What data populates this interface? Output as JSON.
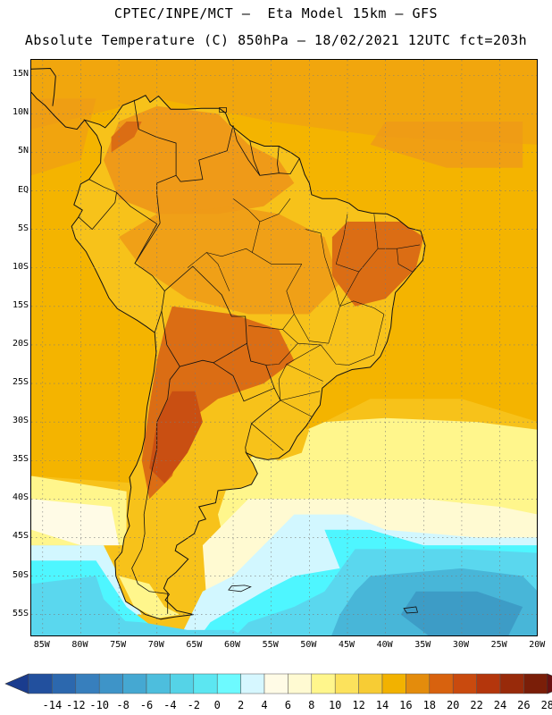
{
  "header": {
    "line1": "CPTEC/INPE/MCT –  Eta Model 15km – GFS",
    "line2": "Absolute Temperature (C) 850hPa – 18/02/2021 12UTC fct=203h"
  },
  "map": {
    "lat_labels": [
      "15N",
      "10N",
      "5N",
      "EQ",
      "5S",
      "10S",
      "15S",
      "20S",
      "25S",
      "30S",
      "35S",
      "40S",
      "45S",
      "50S",
      "55S"
    ],
    "lon_labels": [
      "85W",
      "80W",
      "75W",
      "70W",
      "65W",
      "60W",
      "55W",
      "50W",
      "45W",
      "40W",
      "35W",
      "30W",
      "25W",
      "20W"
    ],
    "colors": {
      "ocean_base": "#f4b400",
      "light_orange": "#f7c21a",
      "orange": "#ef9a18",
      "dark_orange": "#db6d14",
      "red_orange": "#c94f12",
      "yellow": "#fff68c",
      "pale_yellow": "#fffad2",
      "cream": "#fffbe6",
      "pale_cyan": "#d2f7ff",
      "cyan": "#4ef6ff",
      "light_blue": "#5ad7ee",
      "mid_blue": "#48b6d8",
      "deep_blue": "#3d9cc6",
      "coast": "#111111"
    }
  },
  "colorbar": {
    "ticks": [
      "-14",
      "-12",
      "-10",
      "-8",
      "-6",
      "-4",
      "-2",
      "0",
      "2",
      "4",
      "6",
      "8",
      "10",
      "12",
      "14",
      "16",
      "18",
      "20",
      "22",
      "24",
      "26",
      "28"
    ],
    "colors": [
      "#1a3c8e",
      "#22509e",
      "#2c68ae",
      "#377fbd",
      "#3e94c8",
      "#45a8d2",
      "#4dbedd",
      "#55d3e7",
      "#5ce6f1",
      "#6dfaff",
      "#d6f7ff",
      "#fffbe6",
      "#fffad2",
      "#fff68c",
      "#fce25c",
      "#f7cc34",
      "#f2b200",
      "#e48c0c",
      "#d8620e",
      "#c94a0e",
      "#b4360c",
      "#982a0a",
      "#7a1e08",
      "#6a1010"
    ]
  }
}
